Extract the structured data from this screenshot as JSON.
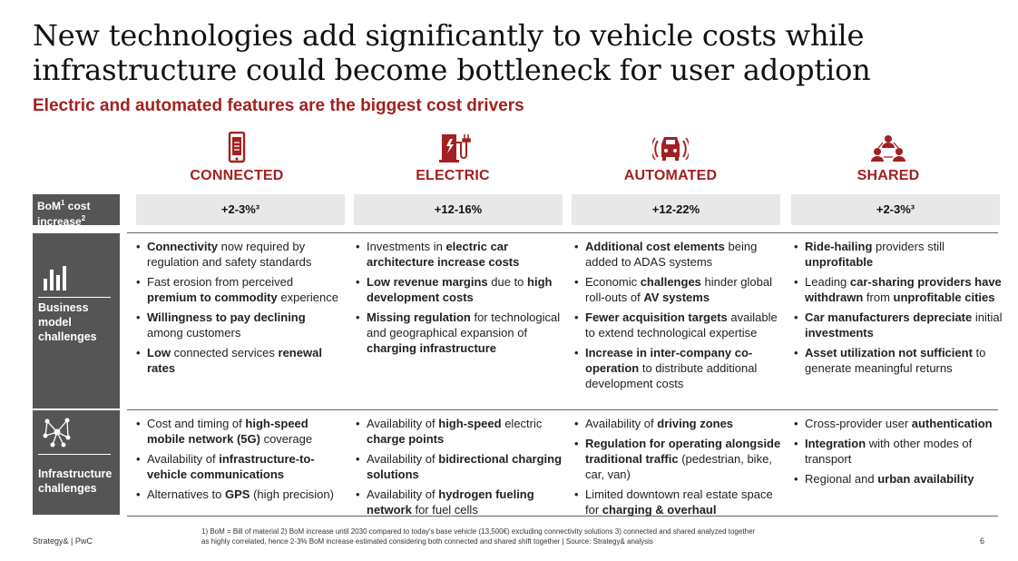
{
  "title_line1": "New technologies add significantly to vehicle costs while",
  "title_line2": "infrastructure could become bottleneck for user adoption",
  "subtitle": "Electric and automated features are the biggest cost drivers",
  "columns": [
    {
      "name": "CONNECTED",
      "icon": "smartphone-icon"
    },
    {
      "name": "ELECTRIC",
      "icon": "charging-station-icon"
    },
    {
      "name": "AUTOMATED",
      "icon": "autonomous-car-icon"
    },
    {
      "name": "SHARED",
      "icon": "shared-users-icon"
    }
  ],
  "bom": {
    "label_a": "BoM",
    "label_sup1": "1",
    "label_b": " cost increase",
    "label_sup2": "2",
    "values": [
      "+2-3%³",
      "+12-16%",
      "+12-22%",
      "+2-3%³"
    ]
  },
  "rows": {
    "business": {
      "label_lines": [
        "Business",
        "model",
        "challenges"
      ],
      "icon": "bar-chart-icon"
    },
    "infra": {
      "label_lines": [
        "Infrastructure",
        "challenges"
      ],
      "icon": "network-icon"
    }
  },
  "business_cells": [
    [
      [
        {
          "t": "Connectivity",
          "b": true
        },
        {
          "t": " now required by regulation and safety standards",
          "b": false
        }
      ],
      [
        {
          "t": "Fast erosion from perceived ",
          "b": false
        },
        {
          "t": "premium to commodity",
          "b": true
        },
        {
          "t": " experience",
          "b": false
        }
      ],
      [
        {
          "t": "Willingness to pay declining",
          "b": true
        },
        {
          "t": " among customers",
          "b": false
        }
      ],
      [
        {
          "t": "Low",
          "b": true
        },
        {
          "t": " connected services ",
          "b": false
        },
        {
          "t": "renewal rates",
          "b": true
        }
      ]
    ],
    [
      [
        {
          "t": "Investments in ",
          "b": false
        },
        {
          "t": "electric car architecture increase costs",
          "b": true
        }
      ],
      [
        {
          "t": "Low revenue margins",
          "b": true
        },
        {
          "t": " due to ",
          "b": false
        },
        {
          "t": "high development costs",
          "b": true
        }
      ],
      [
        {
          "t": "Missing regulation",
          "b": true
        },
        {
          "t": " for technological and geographical expansion of ",
          "b": false
        },
        {
          "t": "charging infrastructure",
          "b": true
        }
      ]
    ],
    [
      [
        {
          "t": "Additional cost elements",
          "b": true
        },
        {
          "t": " being added to ADAS systems",
          "b": false
        }
      ],
      [
        {
          "t": "Economic ",
          "b": false
        },
        {
          "t": "challenges",
          "b": true
        },
        {
          "t": " hinder global roll-outs of ",
          "b": false
        },
        {
          "t": "AV systems",
          "b": true
        }
      ],
      [
        {
          "t": "Fewer acquisition targets",
          "b": true
        },
        {
          "t": " available to extend technological expertise",
          "b": false
        }
      ],
      [
        {
          "t": "Increase in inter-company co-operation",
          "b": true
        },
        {
          "t": " to distribute additional development costs",
          "b": false
        }
      ]
    ],
    [
      [
        {
          "t": "Ride-hailing",
          "b": true
        },
        {
          "t": " providers still ",
          "b": false
        },
        {
          "t": "unprofitable",
          "b": true
        }
      ],
      [
        {
          "t": "Leading ",
          "b": false
        },
        {
          "t": "car-sharing providers have withdrawn",
          "b": true
        },
        {
          "t": " from ",
          "b": false
        },
        {
          "t": "unprofitable cities",
          "b": true
        }
      ],
      [
        {
          "t": "Car manufacturers depreciate",
          "b": true
        },
        {
          "t": " initial ",
          "b": false
        },
        {
          "t": "investments",
          "b": true
        }
      ],
      [
        {
          "t": "Asset utilization not sufficient",
          "b": true
        },
        {
          "t": " to generate meaningful returns",
          "b": false
        }
      ]
    ]
  ],
  "infra_cells": [
    [
      [
        {
          "t": "Cost and timing of ",
          "b": false
        },
        {
          "t": "high-speed mobile network (5G)",
          "b": true
        },
        {
          "t": " coverage",
          "b": false
        }
      ],
      [
        {
          "t": "Availability of ",
          "b": false
        },
        {
          "t": "infrastructure-to-vehicle communications",
          "b": true
        }
      ],
      [
        {
          "t": "Alternatives to ",
          "b": false
        },
        {
          "t": "GPS",
          "b": true
        },
        {
          "t": " (high precision)",
          "b": false
        }
      ]
    ],
    [
      [
        {
          "t": "Availability of ",
          "b": false
        },
        {
          "t": "high-speed",
          "b": true
        },
        {
          "t": " electric ",
          "b": false
        },
        {
          "t": "charge points",
          "b": true
        }
      ],
      [
        {
          "t": "Availability of ",
          "b": false
        },
        {
          "t": "bidirectional charging solutions",
          "b": true
        }
      ],
      [
        {
          "t": "Availability of ",
          "b": false
        },
        {
          "t": "hydrogen fueling network",
          "b": true
        },
        {
          "t": " for fuel cells",
          "b": false
        }
      ]
    ],
    [
      [
        {
          "t": "Availability of ",
          "b": false
        },
        {
          "t": "driving zones",
          "b": true
        }
      ],
      [
        {
          "t": "Regulation for operating alongside traditional traffic",
          "b": true
        },
        {
          "t": " (pedestrian, bike, car, van)",
          "b": false
        }
      ],
      [
        {
          "t": "Limited downtown real estate space for ",
          "b": false
        },
        {
          "t": "charging & overhaul",
          "b": true
        }
      ]
    ],
    [
      [
        {
          "t": "Cross-provider user ",
          "b": false
        },
        {
          "t": "authentication",
          "b": true
        }
      ],
      [
        {
          "t": "Integration",
          "b": true
        },
        {
          "t": " with other modes of transport",
          "b": false
        }
      ],
      [
        {
          "t": "Regional and ",
          "b": false
        },
        {
          "t": "urban availability",
          "b": true
        }
      ]
    ]
  ],
  "footer": {
    "brand": "Strategy& | PwC",
    "footnote_line1": "1) BoM = Bill of material  2) BoM increase until 2030 compared to today's base vehicle (13,500€) excluding connectivity solutions 3) connected and shared analyzed together",
    "footnote_line2": "as highly correlated, hence 2-3% BoM increase estimated considering both connected and shared shift together  |  Source: Strategy& analysis",
    "page": "6"
  },
  "colors": {
    "accent": "#a32020",
    "label_bg": "#555555",
    "value_bg": "#e8e8e8"
  }
}
